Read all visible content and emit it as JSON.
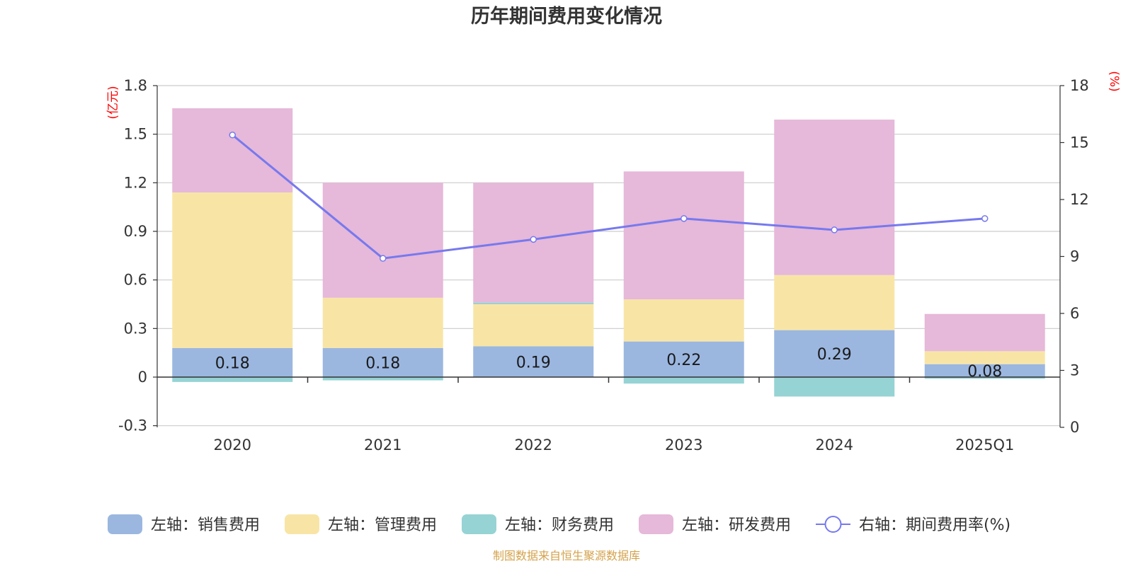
{
  "chart_data": {
    "type": "bar",
    "title": "历年期间费用变化情况",
    "categories": [
      "2020",
      "2021",
      "2022",
      "2023",
      "2024",
      "2025Q1"
    ],
    "left_axis": {
      "unit_label": "(亿元)",
      "ticks": [
        "-0.3",
        "0",
        "0.3",
        "0.6",
        "0.9",
        "1.2",
        "1.5",
        "1.8"
      ],
      "range": [
        -0.3,
        1.8
      ]
    },
    "right_axis": {
      "unit_label": "(%)",
      "ticks": [
        "0",
        "3",
        "6",
        "9",
        "12",
        "15",
        "18"
      ],
      "range": [
        0,
        18
      ]
    },
    "series": [
      {
        "name": "左轴：销售费用",
        "kind": "bar",
        "color": "#9bb7e0",
        "values": [
          0.18,
          0.18,
          0.19,
          0.22,
          0.29,
          0.08
        ],
        "labels": [
          "0.18",
          "0.18",
          "0.19",
          "0.22",
          "0.29",
          "0.08"
        ]
      },
      {
        "name": "左轴：管理费用",
        "kind": "bar",
        "color": "#f8e5a6",
        "values": [
          0.96,
          0.31,
          0.26,
          0.26,
          0.34,
          0.08
        ]
      },
      {
        "name": "左轴：财务费用",
        "kind": "bar",
        "color": "#96d3d4",
        "values": [
          -0.03,
          -0.02,
          0.01,
          -0.04,
          -0.12,
          -0.01
        ]
      },
      {
        "name": "左轴：研发费用",
        "kind": "bar",
        "color": "#e6b8d9",
        "values": [
          0.52,
          0.71,
          0.74,
          0.79,
          0.96,
          0.23
        ]
      },
      {
        "name": "右轴：期间费用率(%)",
        "kind": "line",
        "color": "#7679ee",
        "values": [
          15.4,
          8.9,
          9.9,
          11.0,
          10.4,
          11.0
        ]
      }
    ],
    "source": "制图数据来自恒生聚源数据库"
  }
}
